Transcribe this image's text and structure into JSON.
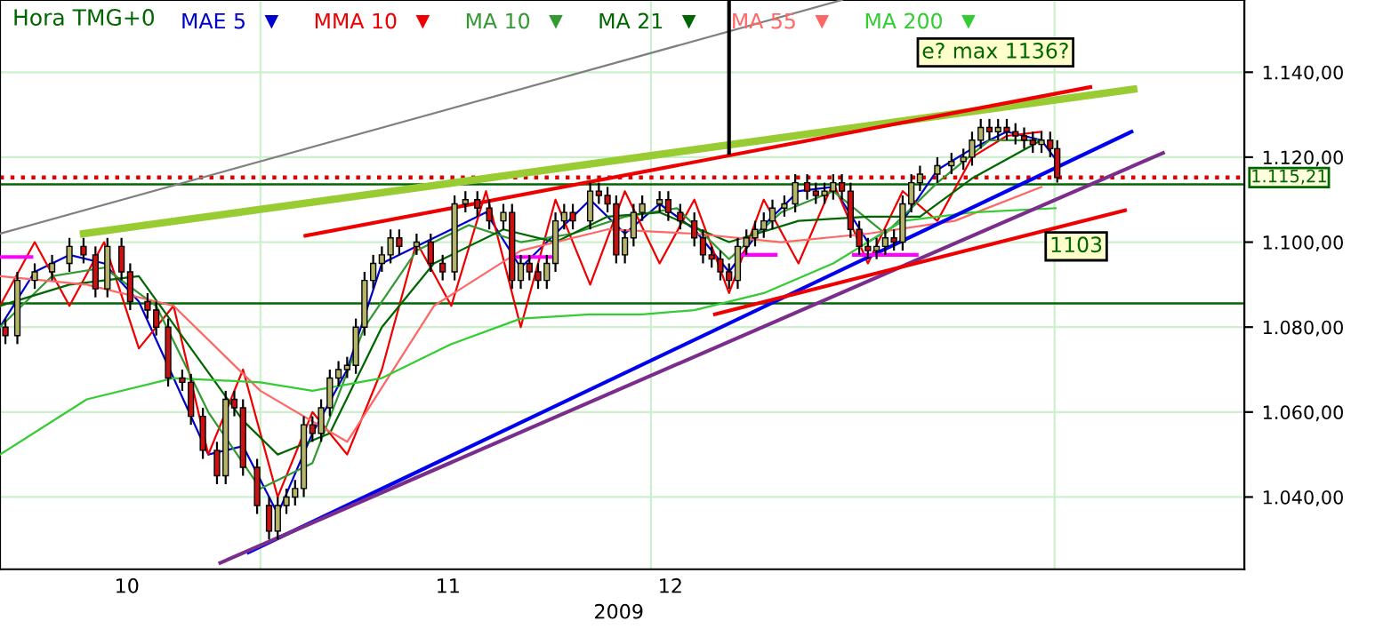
{
  "chart_data": {
    "type": "candlestick",
    "title": "Hora TMG+0",
    "x": [
      "2009-10-12T10:00",
      "2009-10-13T08:00",
      "2009-10-14T16:00",
      "2009-10-16T00:00",
      "2009-10-17T08:00",
      "2009-10-18T10:00",
      "2009-10-19T08:00",
      "2009-10-20T06:00",
      "2009-10-21T08:00",
      "2009-10-22T00:00",
      "2009-10-23T08:00",
      "2009-10-24T00:00",
      "2009-10-24T22:00",
      "2009-10-26T00:00",
      "2009-10-26T16:00",
      "2009-10-27T14:00",
      "2009-10-28T16:00",
      "2009-10-29T08:00",
      "2009-10-30T00:00",
      "2009-10-30T16:00",
      "2009-10-31T18:00",
      "2009-11-01T16:00",
      "2009-11-02T08:00",
      "2009-11-03T00:00",
      "2009-11-03T16:00",
      "2009-11-04T08:00",
      "2009-11-05T00:00",
      "2009-11-05T16:00",
      "2009-11-06T08:00",
      "2009-11-07T00:00",
      "2009-11-07T16:00",
      "2009-11-08T08:00",
      "2009-11-09T00:00",
      "2009-11-09T16:00",
      "2009-11-10T08:00",
      "2009-11-11T00:00",
      "2009-11-11T16:00",
      "2009-11-13T00:00",
      "2009-11-14T02:00",
      "2009-11-15T00:00",
      "2009-11-15T22:00",
      "2009-11-16T18:00",
      "2009-11-17T16:00",
      "2009-11-18T14:00",
      "2009-11-19T16:00",
      "2009-11-20T08:00",
      "2009-11-21T00:00",
      "2009-11-21T16:00",
      "2009-11-22T08:00",
      "2009-11-23T00:00",
      "2009-11-23T16:00",
      "2009-11-24T08:00",
      "2009-11-25T00:00",
      "2009-11-26T08:00",
      "2009-11-27T00:00",
      "2009-11-27T16:00",
      "2009-11-28T08:00",
      "2009-11-29T00:00",
      "2009-11-29T16:00",
      "2009-11-30T08:00",
      "2009-12-01T16:00",
      "2009-12-02T08:00",
      "2009-12-03T06:00",
      "2009-12-04T08:00",
      "2009-12-05T00:00",
      "2009-12-05T16:00",
      "2009-12-06T08:00",
      "2009-12-07T00:00",
      "2009-12-07T16:00",
      "2009-12-08T08:00",
      "2009-12-09T00:00",
      "2009-12-09T16:00",
      "2009-12-10T08:00",
      "2009-12-11T06:00",
      "2009-12-12T02:00",
      "2009-12-13T00:00",
      "2009-12-13T16:00",
      "2009-12-14T08:00",
      "2009-12-15T00:00",
      "2009-12-15T16:00",
      "2009-12-16T08:00",
      "2009-12-17T00:00",
      "2009-12-17T16:00",
      "2009-12-18T08:00",
      "2009-12-19T00:00",
      "2009-12-19T16:00",
      "2009-12-20T08:00",
      "2009-12-21T00:00",
      "2009-12-21T16:00",
      "2009-12-23T00:00",
      "2009-12-24T02:00",
      "2009-12-25T00:00",
      "2009-12-25T16:00",
      "2009-12-26T08:00",
      "2009-12-27T00:00",
      "2009-12-27T16:00",
      "2009-12-28T08:00",
      "2009-12-29T00:00",
      "2009-12-29T16:00",
      "2009-12-30T08:00",
      "2009-12-31T00:00",
      "2009-12-31T16:00",
      "2010-01-01T05:00"
    ],
    "ohlc": [
      [
        1080,
        1082,
        1076,
        1078
      ],
      [
        1078,
        1093,
        1076,
        1091
      ],
      [
        1091,
        1095,
        1089,
        1093
      ],
      [
        1093,
        1097,
        1091,
        1095
      ],
      [
        1095,
        1101,
        1093,
        1099
      ],
      [
        1099,
        1101,
        1095,
        1097
      ],
      [
        1097,
        1099,
        1087,
        1089
      ],
      [
        1089,
        1101,
        1087,
        1099
      ],
      [
        1099,
        1101,
        1091,
        1093
      ],
      [
        1093,
        1095,
        1084,
        1086
      ],
      [
        1086,
        1088,
        1082,
        1084
      ],
      [
        1084,
        1086,
        1078,
        1080
      ],
      [
        1080,
        1082,
        1066,
        1068
      ],
      [
        1068,
        1070,
        1065,
        1067
      ],
      [
        1067,
        1069,
        1057,
        1059
      ],
      [
        1059,
        1061,
        1049,
        1051
      ],
      [
        1051,
        1053,
        1043,
        1045
      ],
      [
        1045,
        1065,
        1043,
        1063
      ],
      [
        1063,
        1065,
        1059,
        1061
      ],
      [
        1061,
        1063,
        1045,
        1047
      ],
      [
        1047,
        1049,
        1036,
        1038
      ],
      [
        1038,
        1040,
        1030,
        1032
      ],
      [
        1032,
        1040,
        1030,
        1038
      ],
      [
        1038,
        1042,
        1036,
        1040
      ],
      [
        1040,
        1044,
        1038,
        1042
      ],
      [
        1042,
        1059,
        1040,
        1057
      ],
      [
        1057,
        1059,
        1053,
        1055
      ],
      [
        1055,
        1063,
        1053,
        1061
      ],
      [
        1061,
        1070,
        1059,
        1068
      ],
      [
        1068,
        1072,
        1066,
        1070
      ],
      [
        1070,
        1073,
        1068,
        1071
      ],
      [
        1071,
        1082,
        1069,
        1080
      ],
      [
        1080,
        1093,
        1078,
        1091
      ],
      [
        1091,
        1097,
        1089,
        1095
      ],
      [
        1095,
        1099,
        1093,
        1097
      ],
      [
        1097,
        1103,
        1095,
        1101
      ],
      [
        1101,
        1103,
        1097,
        1099
      ],
      [
        1099,
        1102,
        1097,
        1100
      ],
      [
        1100,
        1102,
        1093,
        1095
      ],
      [
        1095,
        1097,
        1091,
        1093
      ],
      [
        1093,
        1111,
        1091,
        1109
      ],
      [
        1109,
        1112,
        1107,
        1110
      ],
      [
        1110,
        1112,
        1106,
        1108
      ],
      [
        1108,
        1110,
        1103,
        1105
      ],
      [
        1105,
        1109,
        1103,
        1107
      ],
      [
        1107,
        1109,
        1089,
        1091
      ],
      [
        1091,
        1097,
        1089,
        1095
      ],
      [
        1095,
        1097,
        1091,
        1093
      ],
      [
        1093,
        1095,
        1089,
        1091
      ],
      [
        1091,
        1097,
        1089,
        1095
      ],
      [
        1095,
        1107,
        1093,
        1105
      ],
      [
        1105,
        1109,
        1103,
        1107
      ],
      [
        1107,
        1109,
        1103,
        1105
      ],
      [
        1105,
        1114,
        1103,
        1112
      ],
      [
        1112,
        1114,
        1109,
        1111
      ],
      [
        1111,
        1113,
        1107,
        1109
      ],
      [
        1109,
        1111,
        1095,
        1097
      ],
      [
        1097,
        1103,
        1095,
        1101
      ],
      [
        1101,
        1109,
        1099,
        1107
      ],
      [
        1107,
        1111,
        1105,
        1109
      ],
      [
        1109,
        1112,
        1107,
        1110
      ],
      [
        1110,
        1112,
        1105,
        1107
      ],
      [
        1107,
        1109,
        1103,
        1105
      ],
      [
        1105,
        1107,
        1099,
        1101
      ],
      [
        1101,
        1103,
        1095,
        1097
      ],
      [
        1097,
        1099,
        1094,
        1096
      ],
      [
        1096,
        1098,
        1091,
        1093
      ],
      [
        1093,
        1095,
        1089,
        1091
      ],
      [
        1091,
        1101,
        1089,
        1099
      ],
      [
        1099,
        1103,
        1097,
        1101
      ],
      [
        1101,
        1105,
        1099,
        1103
      ],
      [
        1103,
        1107,
        1101,
        1105
      ],
      [
        1105,
        1110,
        1103,
        1108
      ],
      [
        1108,
        1111,
        1106,
        1109
      ],
      [
        1109,
        1116,
        1107,
        1114
      ],
      [
        1114,
        1116,
        1110,
        1112
      ],
      [
        1112,
        1114,
        1109,
        1111
      ],
      [
        1111,
        1114,
        1109,
        1112
      ],
      [
        1112,
        1116,
        1110,
        1114
      ],
      [
        1114,
        1116,
        1110,
        1112
      ],
      [
        1112,
        1114,
        1101,
        1103
      ],
      [
        1103,
        1105,
        1097,
        1099
      ],
      [
        1099,
        1101,
        1096,
        1098
      ],
      [
        1098,
        1101,
        1096,
        1099
      ],
      [
        1099,
        1103,
        1097,
        1101
      ],
      [
        1101,
        1103,
        1098,
        1100
      ],
      [
        1100,
        1111,
        1098,
        1109
      ],
      [
        1109,
        1116,
        1107,
        1114
      ],
      [
        1114,
        1118,
        1112,
        1116
      ],
      [
        1116,
        1120,
        1114,
        1118
      ],
      [
        1118,
        1121,
        1116,
        1119
      ],
      [
        1119,
        1122,
        1117,
        1120
      ],
      [
        1120,
        1126,
        1118,
        1124
      ],
      [
        1124,
        1129,
        1122,
        1127
      ],
      [
        1127,
        1129,
        1124,
        1126
      ],
      [
        1126,
        1129,
        1124,
        1127
      ],
      [
        1127,
        1129,
        1124,
        1126
      ],
      [
        1126,
        1128,
        1123,
        1125
      ],
      [
        1125,
        1127,
        1122,
        1124
      ],
      [
        1124,
        1126,
        1121,
        1123
      ],
      [
        1123,
        1126,
        1121,
        1124
      ],
      [
        1124,
        1126,
        1120,
        1122
      ],
      [
        1122,
        1124,
        1114,
        1115.21
      ]
    ],
    "series": [
      {
        "name": "MAE 5",
        "color": "#0000cc",
        "type": "line",
        "x": [
          "2009-10-12T00:00",
          "2009-10-14T16:00",
          "2009-10-17T08:00",
          "2009-10-20T00:00",
          "2009-10-22T16:00",
          "2009-10-25T08:00",
          "2009-10-28T00:00",
          "2009-10-30T16:00",
          "2009-11-02T08:00",
          "2009-11-05T00:00",
          "2009-11-07T16:00",
          "2009-11-10T08:00",
          "2009-11-13T00:00",
          "2009-11-15T16:00",
          "2009-11-18T08:00",
          "2009-11-21T00:00",
          "2009-11-23T16:00",
          "2009-11-26T08:00",
          "2009-11-29T00:00",
          "2009-12-01T16:00",
          "2009-12-04T08:00",
          "2009-12-07T00:00",
          "2009-12-09T16:00",
          "2009-12-12T08:00",
          "2009-12-15T00:00",
          "2009-12-17T16:00",
          "2009-12-20T08:00",
          "2009-12-23T00:00",
          "2009-12-25T16:00",
          "2009-12-28T08:00",
          "2009-12-31T00:00",
          "2010-01-01T05:00"
        ],
        "values": [
          1080,
          1093,
          1097,
          1095,
          1086,
          1068,
          1050,
          1052,
          1036,
          1055,
          1070,
          1095,
          1099,
          1103,
          1107,
          1094,
          1102,
          1110,
          1102,
          1109,
          1103,
          1093,
          1104,
          1112,
          1113,
          1100,
          1105,
          1117,
          1122,
          1126,
          1124,
          1119
        ]
      },
      {
        "name": "MMA 10",
        "color": "#ee0000",
        "type": "line",
        "x": [
          "2009-10-12T00:00",
          "2009-10-14T16:00",
          "2009-10-17T08:00",
          "2009-10-20T00:00",
          "2009-10-22T16:00",
          "2009-10-25T08:00",
          "2009-10-28T00:00",
          "2009-10-30T16:00",
          "2009-11-02T08:00",
          "2009-11-05T00:00",
          "2009-11-07T16:00",
          "2009-11-10T08:00",
          "2009-11-13T00:00",
          "2009-11-15T16:00",
          "2009-11-18T08:00",
          "2009-11-21T00:00",
          "2009-11-23T16:00",
          "2009-11-26T08:00",
          "2009-11-29T00:00",
          "2009-12-01T16:00",
          "2009-12-04T08:00",
          "2009-12-07T00:00",
          "2009-12-09T16:00",
          "2009-12-12T08:00",
          "2009-12-15T00:00",
          "2009-12-17T16:00",
          "2009-12-20T08:00",
          "2009-12-23T00:00",
          "2009-12-25T16:00",
          "2009-12-28T08:00",
          "2009-12-31T00:00"
        ],
        "values": [
          1085,
          1100,
          1085,
          1100,
          1075,
          1085,
          1050,
          1070,
          1040,
          1060,
          1050,
          1070,
          1100,
          1085,
          1112,
          1080,
          1110,
          1090,
          1112,
          1095,
          1110,
          1088,
          1110,
          1095,
          1114,
          1095,
          1112,
          1105,
          1120,
          1125,
          1126
        ]
      },
      {
        "name": "MA 10",
        "color": "#339933",
        "type": "line",
        "x": [
          "2009-10-12T00:00",
          "2009-10-16T00:00",
          "2009-10-20T00:00",
          "2009-10-24T00:00",
          "2009-10-28T00:00",
          "2009-11-01T00:00",
          "2009-11-05T00:00",
          "2009-11-09T00:00",
          "2009-11-13T00:00",
          "2009-11-17T00:00",
          "2009-11-21T00:00",
          "2009-11-25T00:00",
          "2009-11-29T00:00",
          "2009-12-03T00:00",
          "2009-12-07T00:00",
          "2009-12-11T00:00",
          "2009-12-15T00:00",
          "2009-12-19T00:00",
          "2009-12-23T00:00",
          "2009-12-27T00:00",
          "2009-12-31T00:00"
        ],
        "values": [
          1080,
          1092,
          1094,
          1085,
          1060,
          1042,
          1048,
          1080,
          1098,
          1104,
          1100,
          1102,
          1106,
          1108,
          1096,
          1107,
          1112,
          1102,
          1114,
          1124,
          1124
        ]
      },
      {
        "name": "MA 21",
        "color": "#006600",
        "type": "line",
        "x": [
          "2009-10-12T00:00",
          "2009-10-17T08:00",
          "2009-10-22T16:00",
          "2009-10-26T16:00",
          "2009-10-30T16:00",
          "2009-11-02T08:00",
          "2009-11-06T08:00",
          "2009-11-10T08:00",
          "2009-11-14T08:00",
          "2009-11-19T16:00",
          "2009-11-23T16:00",
          "2009-11-27T16:00",
          "2009-12-01T16:00",
          "2009-12-07T00:00",
          "2009-12-12T08:00",
          "2009-12-17T16:00",
          "2009-12-21T16:00",
          "2009-12-25T16:00",
          "2009-12-31T00:00"
        ],
        "values": [
          1085,
          1090,
          1092,
          1075,
          1058,
          1050,
          1055,
          1080,
          1095,
          1103,
          1100,
          1106,
          1107,
          1100,
          1105,
          1106,
          1106,
          1115,
          1124
        ]
      },
      {
        "name": "MA 55",
        "color": "#ff6666",
        "type": "line",
        "x": [
          "2009-10-12T00:00",
          "2009-10-18T16:00",
          "2009-10-25T08:00",
          "2009-11-01T00:00",
          "2009-11-07T16:00",
          "2009-11-14T08:00",
          "2009-11-21T00:00",
          "2009-11-27T16:00",
          "2009-12-04T08:00",
          "2009-12-11T00:00",
          "2009-12-17T16:00",
          "2009-12-24T08:00",
          "2009-12-31T00:00"
        ],
        "values": [
          1092,
          1090,
          1085,
          1065,
          1053,
          1085,
          1098,
          1103,
          1102,
          1100,
          1102,
          1105,
          1113
        ]
      },
      {
        "name": "MA 200",
        "color": "#33cc33",
        "type": "line",
        "x": [
          "2009-10-12T00:00",
          "2009-10-18T16:00",
          "2009-10-25T08:00",
          "2009-11-01T00:00",
          "2009-11-05T00:00",
          "2009-11-10T08:00",
          "2009-11-15T16:00",
          "2009-11-21T00:00",
          "2009-11-26T08:00",
          "2009-11-30T08:00",
          "2009-12-04T08:00",
          "2009-12-09T16:00",
          "2009-12-15T00:00",
          "2009-12-20T08:00",
          "2009-12-25T16:00",
          "2010-01-01T02:00"
        ],
        "values": [
          1050,
          1063,
          1068,
          1067,
          1065,
          1068,
          1076,
          1082,
          1083,
          1083,
          1084,
          1088,
          1095,
          1105,
          1107,
          1108
        ]
      },
      {
        "color": "#808080",
        "type": "line",
        "x": [
          "2009-10-12T00:00",
          "2009-12-15T16:00"
        ],
        "values": [
          1102,
          1157
        ]
      },
      {
        "color": "#99cc33",
        "type": "line",
        "x": [
          "2009-10-18T10:00",
          "2010-01-07T02:00"
        ],
        "values": [
          1102,
          1136
        ]
      },
      {
        "color": "#ee0000",
        "type": "line",
        "x": [
          "2009-11-04T11:00",
          "2010-01-03T18:00"
        ],
        "values": [
          1101.5,
          1136.5
        ]
      },
      {
        "color": "#0000ee",
        "type": "line",
        "x": [
          "2009-10-31T02:00",
          "2010-01-06T22:00"
        ],
        "values": [
          1027,
          1126
        ]
      },
      {
        "color": "#7b2d8b",
        "type": "line",
        "x": [
          "2009-10-28T22:00",
          "2010-01-09T08:00"
        ],
        "values": [
          1024.5,
          1121
        ]
      },
      {
        "color": "#ee0000",
        "type": "line",
        "x": [
          "2009-12-05T22:00",
          "2010-01-06T10:00"
        ],
        "values": [
          1083,
          1107.5
        ]
      },
      {
        "color": "#ff00ff",
        "type": "line",
        "x": [
          "2009-10-12T00:00",
          "2009-10-14T10:00"
        ],
        "values": [
          1096.5,
          1096.5
        ]
      },
      {
        "color": "#ff00ff",
        "type": "line",
        "x": [
          "2009-11-20T08:00",
          "2009-11-23T16:00"
        ],
        "values": [
          1096.5,
          1096.5
        ]
      },
      {
        "color": "#ff00ff",
        "type": "line",
        "x": [
          "2009-12-07T16:00",
          "2009-12-10T14:00"
        ],
        "values": [
          1097,
          1097
        ]
      },
      {
        "color": "#ff00ff",
        "type": "line",
        "x": [
          "2009-12-16T14:00",
          "2009-12-21T10:00"
        ],
        "values": [
          1097,
          1097
        ]
      },
      {
        "color": "#000000",
        "type": "line",
        "x": [
          "2009-12-07T00:00",
          "2009-12-07T00:00"
        ],
        "values": [
          1157,
          1121
        ]
      }
    ],
    "ref_lines": [
      {
        "axis": "y",
        "value": 1113.6,
        "color": "#006600",
        "line_style": "solid"
      },
      {
        "axis": "y",
        "value": 1085.6,
        "color": "#006600",
        "line_style": "solid"
      },
      {
        "axis": "y",
        "value": 1115.21,
        "label": "1.115,21",
        "color": "#dd0000",
        "line_style": "dotted"
      }
    ],
    "annotations": [
      "e? max 1136?",
      {
        "text": "1103",
        "x": "2010-01-02T16:00",
        "y": 1099
      },
      "2009"
    ],
    "xlim": [
      "2009-10-12T00:00",
      "2010-01-15T14:00"
    ],
    "ylim": [
      1023,
      1157
    ],
    "xticks": [
      {
        "value": "2009-10-21T18:00",
        "label": "10"
      },
      {
        "value": "2009-11-01T00:00",
        "label": null
      },
      {
        "value": "2009-11-15T10:00",
        "label": "11"
      },
      {
        "value": "2009-12-01T00:00",
        "label": null
      },
      {
        "value": "2009-12-02T12:00",
        "label": "12"
      },
      {
        "value": "2010-01-01T00:00",
        "label": null
      }
    ],
    "yticks": [
      {
        "value": 1040,
        "label": "1.040,00"
      },
      {
        "value": 1060,
        "label": "1.060,00"
      },
      {
        "value": 1080,
        "label": "1.080,00"
      },
      {
        "value": 1100,
        "label": "1.100,00"
      },
      {
        "value": 1120,
        "label": "1.120,00"
      },
      {
        "value": 1140,
        "label": "1.140,00"
      }
    ],
    "grid": true,
    "legend": "top left"
  }
}
